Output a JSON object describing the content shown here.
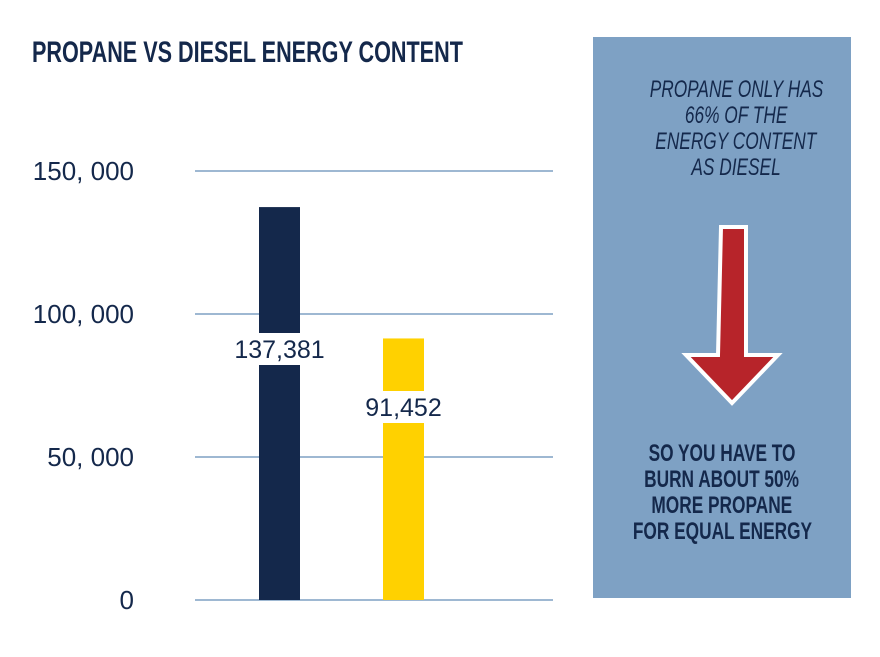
{
  "chart_data": {
    "type": "bar",
    "title": "PROPANE VS DIESEL ENERGY CONTENT",
    "categories": [
      "",
      ""
    ],
    "values": [
      137381,
      91452
    ],
    "data_labels": [
      "137,381",
      "91,452"
    ],
    "bar_colors": [
      "#14284b",
      "#ffd100"
    ],
    "ylim": [
      0,
      150000
    ],
    "yticks": [
      0,
      50000,
      100000,
      150000
    ],
    "ytick_labels": [
      "0",
      "50, 000",
      "100, 000",
      "150, 000"
    ],
    "grid": true,
    "xlabel": "",
    "ylabel": ""
  },
  "callout": {
    "top_lines": [
      "PROPANE ONLY HAS",
      "66% OF THE",
      "ENERGY CONTENT",
      "AS DIESEL"
    ],
    "bottom_lines": [
      "SO YOU HAVE TO",
      "BURN ABOUT 50%",
      "MORE PROPANE",
      "FOR EQUAL ENERGY"
    ],
    "arrow_icon": "down-arrow-icon",
    "panel_color": "#7ea1c4",
    "arrow_color": "#b7242a"
  }
}
